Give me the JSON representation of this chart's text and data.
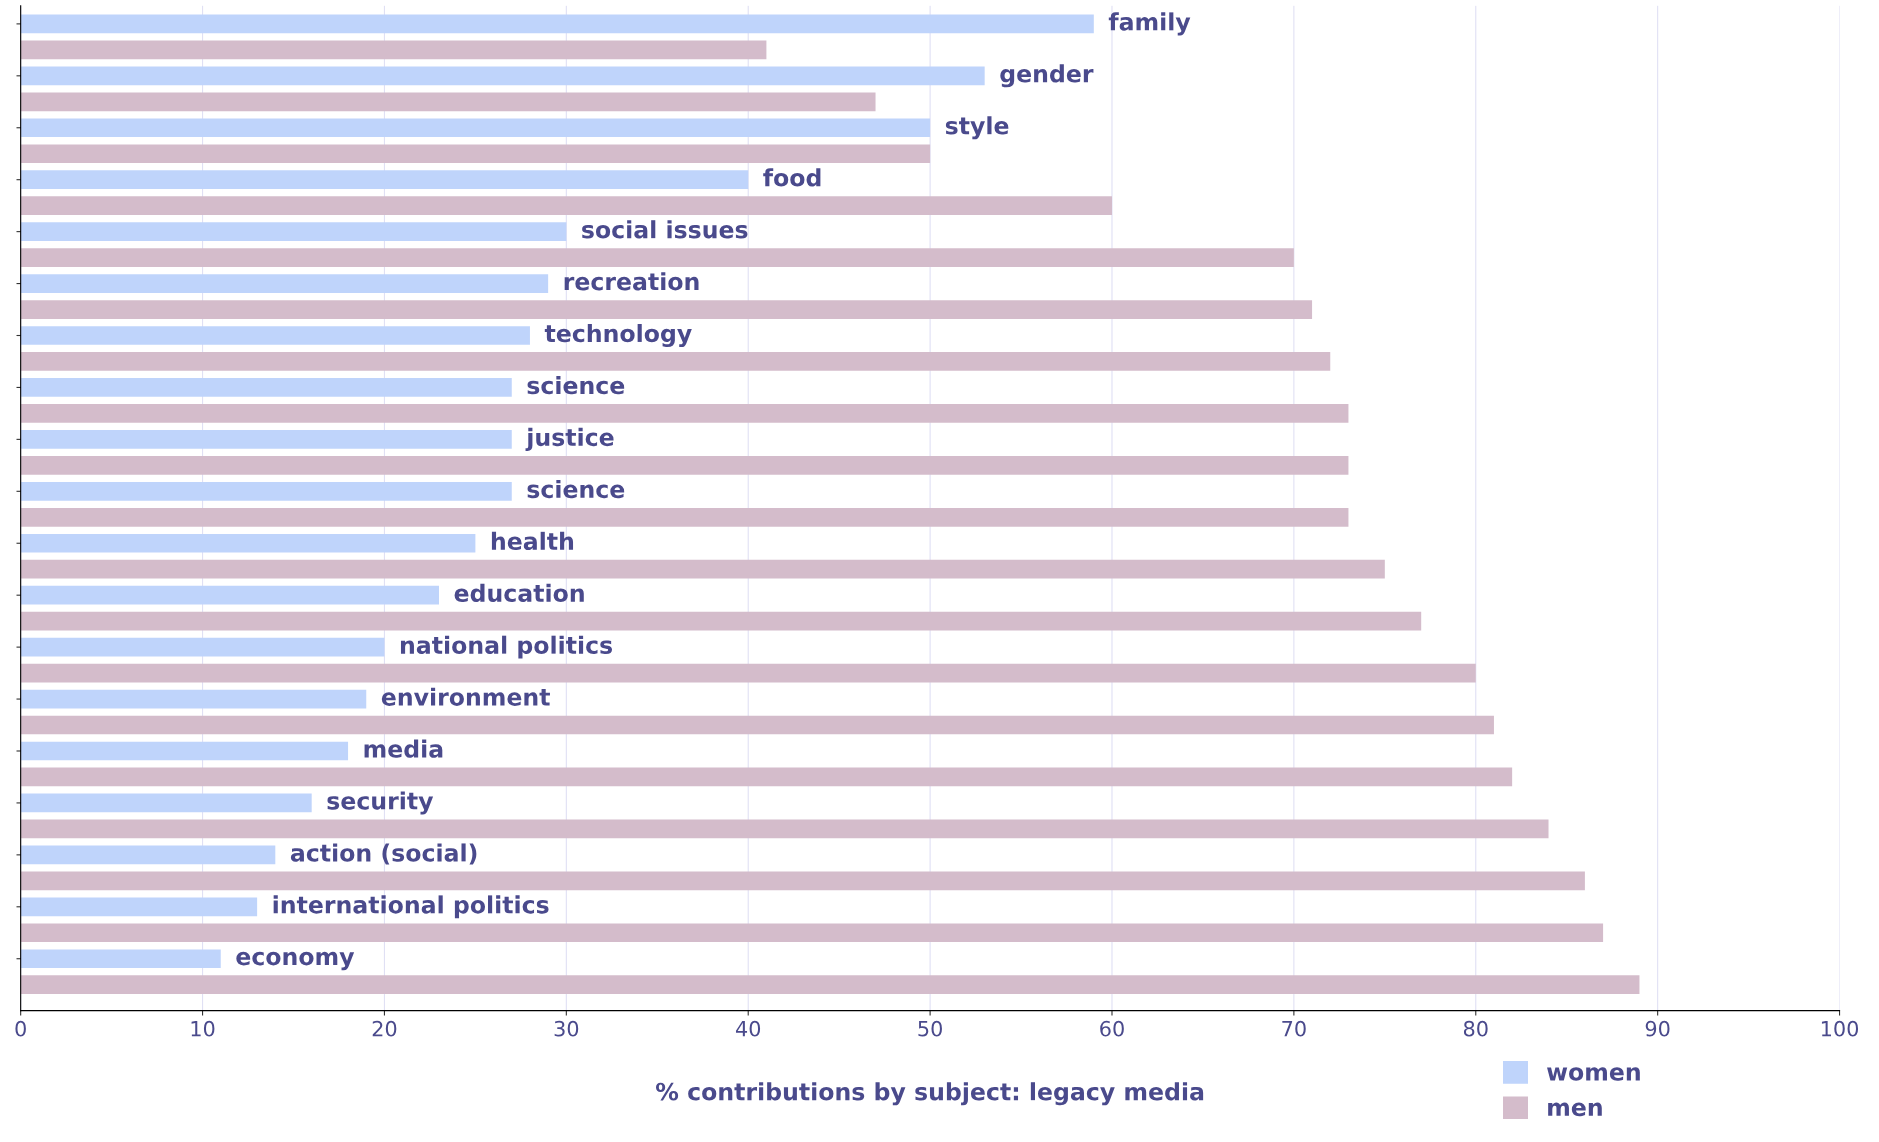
{
  "chart_data": {
    "type": "bar",
    "orientation": "horizontal",
    "xlabel": "% contributions by subject: legacy media",
    "categories": [
      "family",
      "gender",
      "style",
      "food",
      "social issues",
      "recreation",
      "technology",
      "science",
      "justice",
      "science",
      "health",
      "education",
      "national politics",
      "environment",
      "media",
      "security",
      "action (social)",
      "international politics",
      "economy"
    ],
    "series": [
      {
        "name": "women",
        "color": "#bfd4fb",
        "values": [
          59,
          53,
          50,
          40,
          30,
          29,
          28,
          27,
          27,
          27,
          25,
          23,
          20,
          19,
          18,
          16,
          14,
          13,
          11
        ]
      },
      {
        "name": "men",
        "color": "#d4bccb",
        "values": [
          41,
          47,
          50,
          60,
          70,
          71,
          72,
          73,
          73,
          73,
          75,
          77,
          80,
          81,
          82,
          84,
          86,
          87,
          89
        ]
      }
    ],
    "xlim": [
      0,
      100
    ],
    "xticks": [
      0,
      10,
      20,
      30,
      40,
      50,
      60,
      70,
      80,
      90,
      100
    ],
    "grid": "x",
    "legend": "bottom right"
  }
}
